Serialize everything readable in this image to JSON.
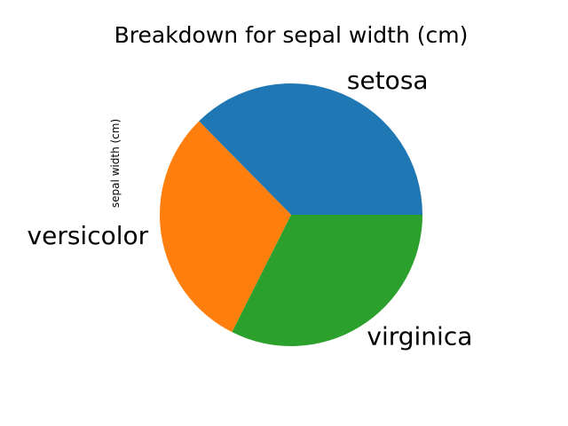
{
  "chart_data": {
    "type": "pie",
    "title": "Breakdown for sepal width (cm)",
    "ylabel": "sepal width (cm)",
    "labels": [
      "setosa",
      "versicolor",
      "virginica"
    ],
    "values": [
      171.4,
      138.5,
      148.7
    ],
    "colors": [
      "#1f77b4",
      "#ff7f0e",
      "#2ca02c"
    ],
    "start_angle_deg": 0,
    "direction": "counterclockwise",
    "legend": "none"
  }
}
